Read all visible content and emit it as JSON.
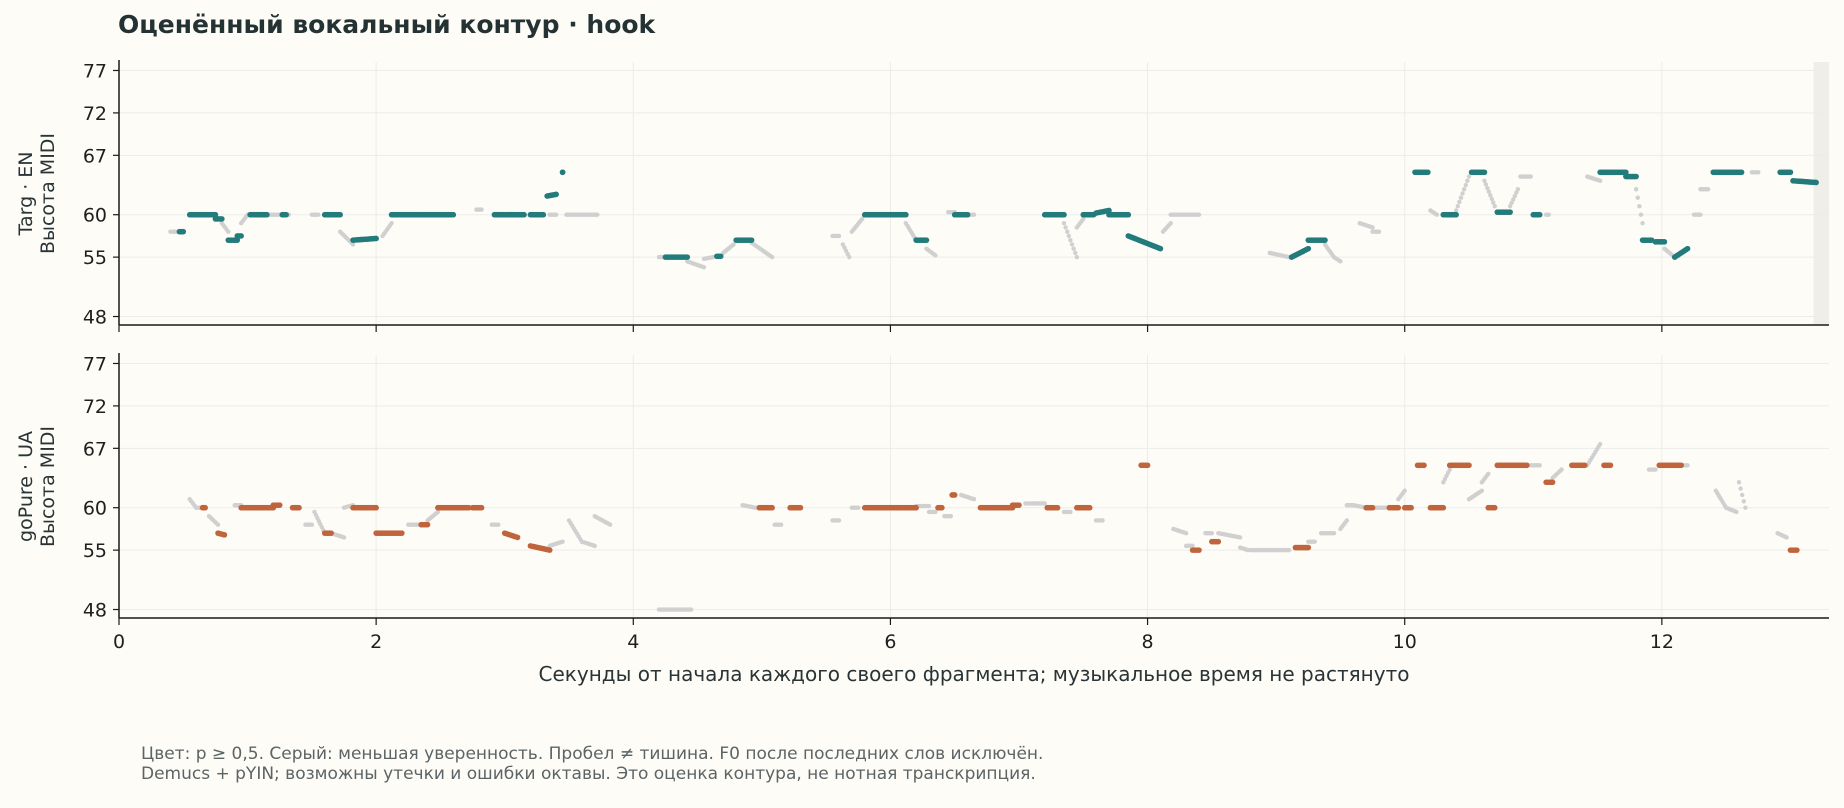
{
  "title": "Оценённый вокальный контур · hook",
  "footnote": {
    "line1": "Цвет: p ≥ 0,5. Серый: меньшая уверенность. Пробел ≠ тишина. F0 после последних слов исключён.",
    "line2": "Demucs + pYIN; возможны утечки и ошибки октавы. Это оценка контура, не нотная транскрипция."
  },
  "colors": {
    "background": "#fdfcf7",
    "top_series": "#237b7b",
    "bottom_series": "#c0643d",
    "low_confidence": "#d0d0d0",
    "grid": "#ececea",
    "axis": "#1a1a1a",
    "shaded_region": "#efeee9"
  },
  "chart_data": [
    {
      "type": "scatter",
      "ylabel_lines": [
        "Targ · EN",
        "Высота MIDI"
      ],
      "xlim": [
        0,
        13.3
      ],
      "ylim": [
        47,
        78
      ],
      "yticks": [
        48,
        55,
        60,
        67,
        72,
        77
      ],
      "xticks": [
        0,
        2,
        4,
        6,
        8,
        10,
        12
      ],
      "grid": true,
      "shaded_x_range": [
        13.18,
        13.3
      ],
      "confident_segments": [
        [
          0.47,
          0.5,
          58,
          58
        ],
        [
          0.55,
          0.75,
          60,
          60
        ],
        [
          0.75,
          0.8,
          59.5,
          59.5
        ],
        [
          0.85,
          0.92,
          57,
          57
        ],
        [
          0.92,
          0.95,
          57.5,
          57.5
        ],
        [
          1.02,
          1.15,
          60,
          60
        ],
        [
          1.27,
          1.3,
          60,
          60
        ],
        [
          1.6,
          1.72,
          60,
          60
        ],
        [
          1.82,
          2.0,
          57,
          57.2
        ],
        [
          2.12,
          2.6,
          60,
          60
        ],
        [
          2.92,
          3.05,
          60,
          60
        ],
        [
          3.05,
          3.15,
          60,
          60
        ],
        [
          3.2,
          3.3,
          60,
          60
        ],
        [
          3.33,
          3.4,
          62.2,
          62.4
        ],
        [
          3.45,
          3.45,
          65,
          65
        ],
        [
          4.25,
          4.42,
          55,
          55
        ],
        [
          4.65,
          4.68,
          55.1,
          55.1
        ],
        [
          4.8,
          4.92,
          57,
          57
        ],
        [
          5.8,
          6.12,
          60,
          60
        ],
        [
          6.2,
          6.28,
          57,
          57
        ],
        [
          6.5,
          6.6,
          60,
          60
        ],
        [
          7.2,
          7.35,
          60,
          60
        ],
        [
          7.5,
          7.58,
          60,
          60
        ],
        [
          7.6,
          7.7,
          60.2,
          60.5
        ],
        [
          7.7,
          7.85,
          60,
          60
        ],
        [
          7.85,
          8.1,
          57.5,
          56
        ],
        [
          9.12,
          9.25,
          55,
          56
        ],
        [
          9.25,
          9.38,
          57,
          57
        ],
        [
          10.08,
          10.18,
          65,
          65
        ],
        [
          10.3,
          10.4,
          60,
          60
        ],
        [
          10.52,
          10.62,
          65,
          65
        ],
        [
          10.72,
          10.82,
          60.3,
          60.3
        ],
        [
          11.0,
          11.05,
          60,
          60
        ],
        [
          11.52,
          11.72,
          65,
          65
        ],
        [
          11.72,
          11.8,
          64.5,
          64.5
        ],
        [
          11.85,
          11.92,
          57,
          57
        ],
        [
          11.95,
          12.02,
          56.8,
          56.8
        ],
        [
          12.1,
          12.2,
          55,
          56
        ],
        [
          12.4,
          12.62,
          65,
          65
        ],
        [
          12.92,
          13.0,
          65,
          65
        ],
        [
          13.02,
          13.2,
          64,
          63.8
        ]
      ],
      "uncertain_segments": [
        [
          0.4,
          0.45,
          58,
          58
        ],
        [
          0.8,
          0.85,
          59,
          58
        ],
        [
          0.95,
          1.0,
          59,
          60
        ],
        [
          1.15,
          1.25,
          60,
          60
        ],
        [
          1.3,
          1.32,
          60,
          60
        ],
        [
          1.5,
          1.55,
          60,
          60
        ],
        [
          1.72,
          1.82,
          58,
          56.5
        ],
        [
          2.05,
          2.12,
          57.5,
          59
        ],
        [
          2.78,
          2.82,
          60.6,
          60.6
        ],
        [
          3.35,
          3.4,
          60,
          60
        ],
        [
          3.48,
          3.72,
          60,
          60
        ],
        [
          4.2,
          4.25,
          55,
          55
        ],
        [
          4.42,
          4.55,
          54.5,
          53.8
        ],
        [
          4.55,
          4.62,
          54.8,
          55
        ],
        [
          4.7,
          4.78,
          55.5,
          56.5
        ],
        [
          4.92,
          5.08,
          56.7,
          55
        ],
        [
          5.55,
          5.6,
          57.5,
          57.5
        ],
        [
          5.63,
          5.68,
          56.5,
          55
        ],
        [
          5.7,
          5.78,
          58,
          59.5
        ],
        [
          6.12,
          6.2,
          59,
          57
        ],
        [
          6.28,
          6.35,
          56,
          55.2
        ],
        [
          6.45,
          6.5,
          60.3,
          60.3
        ],
        [
          6.6,
          6.65,
          60,
          60
        ],
        [
          7.35,
          7.45,
          59,
          55
        ],
        [
          7.45,
          7.5,
          58.5,
          59.5
        ],
        [
          8.12,
          8.18,
          58,
          59
        ],
        [
          8.18,
          8.4,
          60,
          60
        ],
        [
          8.95,
          9.1,
          55.5,
          55
        ],
        [
          9.38,
          9.45,
          56.5,
          55
        ],
        [
          9.45,
          9.5,
          55,
          54.5
        ],
        [
          9.65,
          9.75,
          59,
          58.5
        ],
        [
          9.75,
          9.8,
          58,
          58
        ],
        [
          10.2,
          10.25,
          60.5,
          60
        ],
        [
          10.4,
          10.5,
          60.5,
          64.5
        ],
        [
          10.62,
          10.7,
          64,
          61
        ],
        [
          10.82,
          10.88,
          61,
          63
        ],
        [
          10.9,
          10.98,
          64.5,
          64.5
        ],
        [
          11.1,
          11.12,
          60,
          60
        ],
        [
          11.42,
          11.52,
          64.5,
          64
        ],
        [
          11.8,
          11.85,
          63,
          59
        ],
        [
          12.02,
          12.1,
          56,
          55
        ],
        [
          12.25,
          12.3,
          60,
          60
        ],
        [
          12.3,
          12.36,
          63,
          63
        ],
        [
          12.7,
          12.75,
          65,
          65
        ]
      ]
    },
    {
      "type": "scatter",
      "ylabel_lines": [
        "goPure · UA",
        "Высота MIDI"
      ],
      "xlabel": "Секунды от начала каждого своего фрагмента; музыкальное время не растянуто",
      "xlim": [
        0,
        13.3
      ],
      "ylim": [
        47,
        78
      ],
      "yticks": [
        48,
        55,
        60,
        67,
        72,
        77
      ],
      "xticks": [
        0,
        2,
        4,
        6,
        8,
        10,
        12
      ],
      "grid": true,
      "confident_segments": [
        [
          0.65,
          0.67,
          60,
          60
        ],
        [
          0.77,
          0.82,
          57,
          56.8
        ],
        [
          0.95,
          1.2,
          60,
          60
        ],
        [
          1.2,
          1.25,
          60.3,
          60.3
        ],
        [
          1.35,
          1.4,
          60,
          60
        ],
        [
          1.6,
          1.65,
          57,
          57
        ],
        [
          1.82,
          2.0,
          60,
          60
        ],
        [
          2.0,
          2.2,
          57,
          57
        ],
        [
          2.35,
          2.4,
          58,
          58
        ],
        [
          2.48,
          2.72,
          60,
          60
        ],
        [
          2.75,
          2.82,
          60,
          60
        ],
        [
          3.0,
          3.1,
          57,
          56.5
        ],
        [
          3.2,
          3.35,
          55.5,
          55
        ],
        [
          4.98,
          5.08,
          60,
          60
        ],
        [
          5.22,
          5.3,
          60,
          60
        ],
        [
          5.8,
          6.05,
          60,
          60
        ],
        [
          6.05,
          6.2,
          60,
          60
        ],
        [
          6.37,
          6.4,
          60,
          60
        ],
        [
          6.48,
          6.5,
          61.5,
          61.5
        ],
        [
          6.7,
          6.95,
          60,
          60
        ],
        [
          6.95,
          7.0,
          60.3,
          60.3
        ],
        [
          7.22,
          7.3,
          60,
          60
        ],
        [
          7.45,
          7.55,
          60,
          60
        ],
        [
          7.95,
          8.0,
          65,
          65
        ],
        [
          8.35,
          8.4,
          55,
          55
        ],
        [
          8.5,
          8.55,
          56,
          56
        ],
        [
          9.15,
          9.25,
          55.3,
          55.3
        ],
        [
          9.7,
          9.75,
          60,
          60
        ],
        [
          9.88,
          9.95,
          60,
          60
        ],
        [
          10.0,
          10.05,
          60,
          60
        ],
        [
          10.1,
          10.15,
          65,
          65
        ],
        [
          10.2,
          10.3,
          60,
          60
        ],
        [
          10.35,
          10.5,
          65,
          65
        ],
        [
          10.65,
          10.7,
          60,
          60
        ],
        [
          10.72,
          10.95,
          65,
          65
        ],
        [
          11.1,
          11.15,
          63,
          63
        ],
        [
          11.3,
          11.4,
          65,
          65
        ],
        [
          11.55,
          11.6,
          65,
          65
        ],
        [
          11.98,
          12.15,
          65,
          65
        ],
        [
          13.0,
          13.05,
          55,
          55
        ]
      ],
      "uncertain_segments": [
        [
          0.55,
          0.6,
          61,
          60
        ],
        [
          0.6,
          0.65,
          60,
          60
        ],
        [
          0.7,
          0.77,
          59,
          58
        ],
        [
          0.9,
          0.95,
          60.3,
          60.3
        ],
        [
          1.45,
          1.5,
          58,
          58
        ],
        [
          1.52,
          1.6,
          59.5,
          57
        ],
        [
          1.65,
          1.75,
          57,
          56.5
        ],
        [
          1.75,
          1.82,
          60,
          60.3
        ],
        [
          2.25,
          2.35,
          58,
          58
        ],
        [
          2.4,
          2.48,
          58.5,
          59.5
        ],
        [
          2.9,
          2.95,
          58,
          58
        ],
        [
          3.35,
          3.45,
          55.5,
          56
        ],
        [
          3.5,
          3.6,
          58.5,
          56
        ],
        [
          3.6,
          3.7,
          56,
          55.5
        ],
        [
          3.7,
          3.82,
          59,
          58
        ],
        [
          4.2,
          4.45,
          48,
          48
        ],
        [
          4.85,
          4.95,
          60.3,
          60
        ],
        [
          5.1,
          5.15,
          58,
          58
        ],
        [
          5.55,
          5.6,
          58.5,
          58.5
        ],
        [
          5.7,
          5.75,
          60,
          60
        ],
        [
          6.2,
          6.3,
          60.2,
          60.2
        ],
        [
          6.3,
          6.35,
          59.5,
          59.5
        ],
        [
          6.42,
          6.47,
          59,
          59
        ],
        [
          6.55,
          6.65,
          61.5,
          61
        ],
        [
          7.05,
          7.2,
          60.5,
          60.5
        ],
        [
          7.35,
          7.4,
          59.5,
          59.5
        ],
        [
          7.6,
          7.65,
          58.5,
          58.5
        ],
        [
          8.2,
          8.3,
          57.5,
          57
        ],
        [
          8.3,
          8.35,
          55.5,
          55.5
        ],
        [
          8.45,
          8.5,
          57,
          57
        ],
        [
          8.55,
          8.72,
          57,
          56.5
        ],
        [
          8.72,
          8.78,
          55.3,
          55
        ],
        [
          8.8,
          9.1,
          55,
          55
        ],
        [
          9.25,
          9.3,
          56,
          56
        ],
        [
          9.35,
          9.45,
          57,
          57
        ],
        [
          9.5,
          9.55,
          57.5,
          58.5
        ],
        [
          9.55,
          9.6,
          60.3,
          60.3
        ],
        [
          9.6,
          9.7,
          60.3,
          60
        ],
        [
          9.75,
          9.85,
          60,
          60
        ],
        [
          9.95,
          10.0,
          61,
          62
        ],
        [
          10.3,
          10.35,
          63,
          64.5
        ],
        [
          10.5,
          10.6,
          61,
          62
        ],
        [
          10.6,
          10.65,
          63,
          64
        ],
        [
          10.98,
          11.05,
          65,
          65
        ],
        [
          11.15,
          11.22,
          63.5,
          64.5
        ],
        [
          11.42,
          11.52,
          65,
          67.5
        ],
        [
          11.9,
          11.95,
          64.5,
          64.5
        ],
        [
          12.15,
          12.2,
          65,
          65
        ],
        [
          12.42,
          12.5,
          62,
          60
        ],
        [
          12.5,
          12.58,
          60,
          59.5
        ],
        [
          12.6,
          12.65,
          63,
          60
        ],
        [
          12.9,
          12.97,
          57,
          56.5
        ]
      ]
    }
  ]
}
